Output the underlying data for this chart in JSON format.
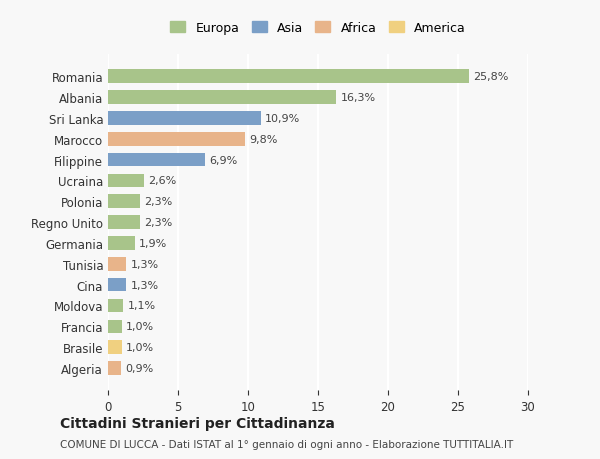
{
  "countries": [
    "Romania",
    "Albania",
    "Sri Lanka",
    "Marocco",
    "Filippine",
    "Ucraina",
    "Polonia",
    "Regno Unito",
    "Germania",
    "Tunisia",
    "Cina",
    "Moldova",
    "Francia",
    "Brasile",
    "Algeria"
  ],
  "values": [
    25.8,
    16.3,
    10.9,
    9.8,
    6.9,
    2.6,
    2.3,
    2.3,
    1.9,
    1.3,
    1.3,
    1.1,
    1.0,
    1.0,
    0.9
  ],
  "labels": [
    "25,8%",
    "16,3%",
    "10,9%",
    "9,8%",
    "6,9%",
    "2,6%",
    "2,3%",
    "2,3%",
    "1,9%",
    "1,3%",
    "1,3%",
    "1,1%",
    "1,0%",
    "1,0%",
    "0,9%"
  ],
  "continents": [
    "Europa",
    "Europa",
    "Asia",
    "Africa",
    "Asia",
    "Europa",
    "Europa",
    "Europa",
    "Europa",
    "Africa",
    "Asia",
    "Europa",
    "Europa",
    "America",
    "Africa"
  ],
  "colors": {
    "Europa": "#a8c48a",
    "Asia": "#7b9fc7",
    "Africa": "#e8b48a",
    "America": "#f0d080"
  },
  "legend_order": [
    "Europa",
    "Asia",
    "Africa",
    "America"
  ],
  "title": "Cittadini Stranieri per Cittadinanza",
  "subtitle": "COMUNE DI LUCCA - Dati ISTAT al 1° gennaio di ogni anno - Elaborazione TUTTITALIA.IT",
  "xlim": [
    0,
    30
  ],
  "xticks": [
    0,
    5,
    10,
    15,
    20,
    25,
    30
  ],
  "background_color": "#f8f8f8",
  "grid_color": "#ffffff",
  "bar_height": 0.65
}
